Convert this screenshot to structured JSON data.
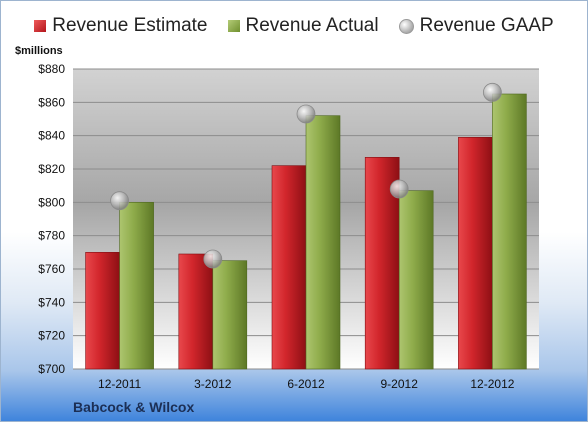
{
  "chart_data": {
    "type": "bar",
    "categories": [
      "12-2011",
      "3-2012",
      "6-2012",
      "9-2012",
      "12-2012"
    ],
    "series": [
      {
        "name": "Revenue Estimate",
        "values": [
          770,
          769,
          822,
          827,
          839
        ]
      },
      {
        "name": "Revenue Actual",
        "values": [
          800,
          765,
          852,
          807,
          865
        ]
      }
    ],
    "markers": {
      "name": "Revenue GAAP",
      "values": [
        801,
        766,
        853,
        808,
        866
      ]
    },
    "ylabel": "$millions",
    "ylim": [
      700,
      880
    ],
    "yticks": [
      "$700",
      "$720",
      "$740",
      "$760",
      "$780",
      "$800",
      "$820",
      "$840",
      "$860",
      "$880"
    ],
    "grid": true,
    "legend": "top"
  },
  "footer": {
    "company": "Babcock & Wilcox"
  },
  "colors": {
    "estimate": "#c62128",
    "actual": "#8fac4b",
    "gaap": "#b5b5b5"
  }
}
